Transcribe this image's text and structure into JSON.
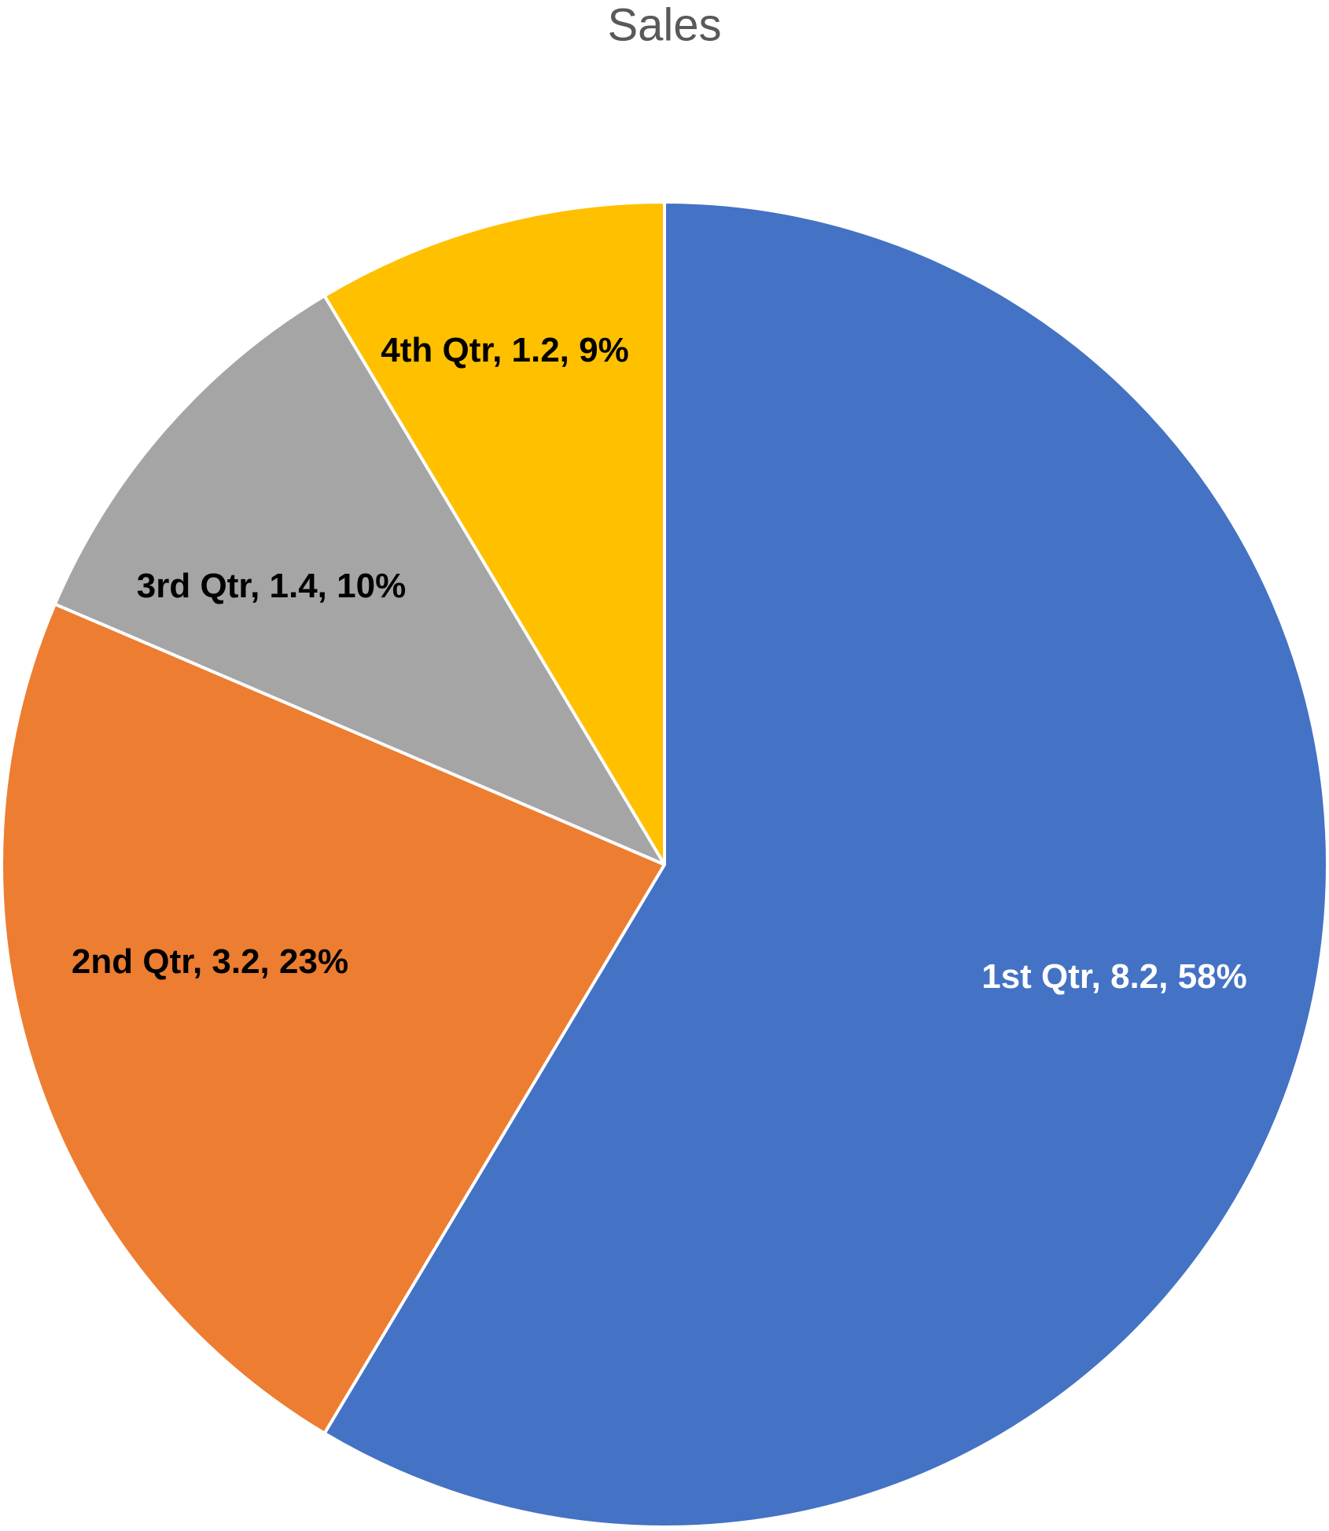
{
  "chart_data": {
    "type": "pie",
    "title": "Sales",
    "categories": [
      "1st Qtr",
      "2nd Qtr",
      "3rd Qtr",
      "4th Qtr"
    ],
    "values": [
      8.2,
      3.2,
      1.4,
      1.2
    ],
    "value_labels": [
      "1st Qtr, 8.2, 58%",
      "2nd Qtr, 3.2, 23%",
      "3rd Qtr, 1.4, 10%",
      "4th Qtr, 1.2, 9%"
    ],
    "colors": [
      "#4472c4",
      "#ed7d31",
      "#a5a5a5",
      "#ffc000"
    ],
    "label_colors": [
      "#ffffff",
      "#000000",
      "#000000",
      "#000000"
    ]
  }
}
